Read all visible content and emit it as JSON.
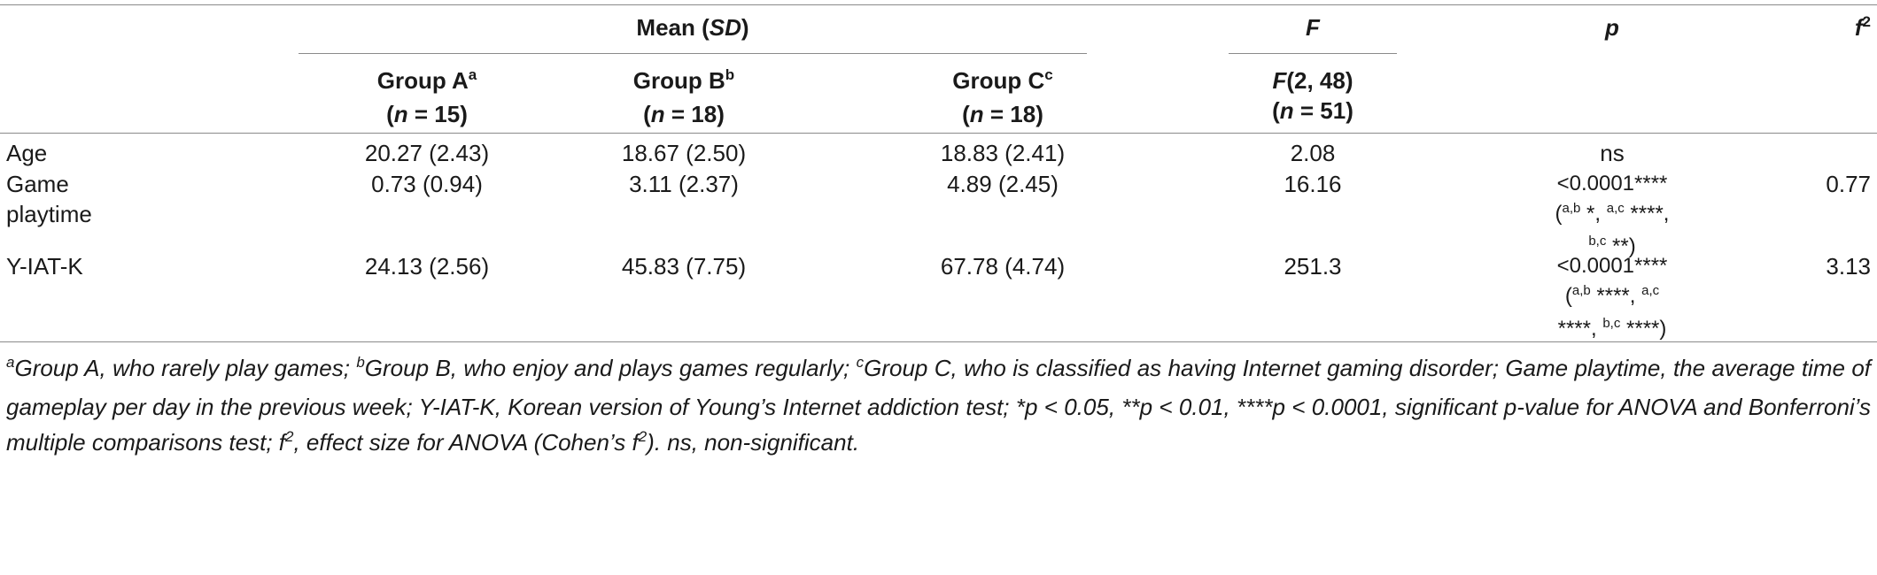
{
  "header": {
    "mean_sd_prefix": "Mean (",
    "mean_sd_italic": "SD",
    "mean_sd_suffix": ")",
    "f_col": "F",
    "p_col": "p",
    "f2_col_base": "f",
    "f2_col_sup": "2",
    "groups": [
      {
        "name": "Group A",
        "sup": "a",
        "n_var": "n",
        "n_rest": " = 15)"
      },
      {
        "name": "Group B",
        "sup": "b",
        "n_var": "n",
        "n_rest": " = 18)"
      },
      {
        "name": "Group C",
        "sup": "c",
        "n_var": "n",
        "n_rest": " = 18)"
      }
    ],
    "f_sub_italic": "F",
    "f_sub_rest": "(2, 48)",
    "f_sub_n_var": "n",
    "f_sub_n_rest": " = 51)"
  },
  "rows": [
    {
      "label": "Age",
      "a": "20.27 (2.43)",
      "b": "18.67 (2.50)",
      "c": "18.83 (2.41)",
      "F": "2.08",
      "p_line1": "ns",
      "f2": ""
    },
    {
      "label_line1": "Game",
      "label_line2": "playtime",
      "a": "0.73 (0.94)",
      "b": "3.11 (2.37)",
      "c": "4.89 (2.45)",
      "F": "16.16",
      "p_line1": "<0.0001****",
      "p_open": "(",
      "p_sup1": "a,b",
      "p_mid1": " *",
      "p_comma1": ", ",
      "p_sup2": "a,c",
      "p_mid2": " ****",
      "p_comma2": ",",
      "p_sup3": "b,c",
      "p_mid3": " **",
      "p_close": ")",
      "f2": "0.77"
    },
    {
      "label": "Y-IAT-K",
      "a": "24.13 (2.56)",
      "b": "45.83 (7.75)",
      "c": "67.78 (4.74)",
      "F": "251.3",
      "p_line1": "<0.0001****",
      "p_open": "(",
      "p_sup1": "a,b",
      "p_mid1": " ****",
      "p_comma1": ", ",
      "p_sup2": "a,c",
      "p_mid2": "****",
      "p_comma2": ", ",
      "p_sup3": "b,c",
      "p_mid3": " ****",
      "p_close": ")",
      "f2": "3.13"
    }
  ],
  "footnote": {
    "sup_a": "a",
    "text_a": "Group A, who rarely play games; ",
    "sup_b": "b",
    "text_b": "Group B, who enjoy and plays games regularly; ",
    "sup_c": "c",
    "text_c": "Group C, who is classified as having Internet gaming disorder; Game playtime, the average time of gameplay per day in the previous week; Y-IAT-K, Korean version of Young’s Internet addiction test; *p < 0.05, **p < 0.01, ****p < 0.0001, significant p-value for ANOVA and Bonferroni’s multiple comparisons test; f",
    "sup_2a": "2",
    "text_d": ", effect size for ANOVA (Cohen’s f",
    "sup_2b": "2",
    "text_e": "). ns, non-significant."
  }
}
